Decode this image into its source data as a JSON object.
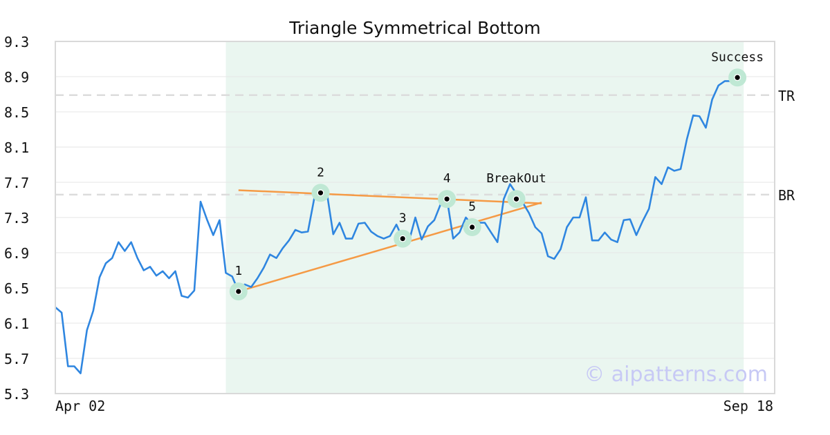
{
  "chart_data": {
    "type": "line",
    "title": "Triangle Symmetrical Bottom",
    "x_tick_labels": [
      "Apr 02",
      "Sep 18"
    ],
    "ylim": [
      5.3,
      9.3
    ],
    "y_ticks": [
      "5.3",
      "5.7",
      "6.1",
      "6.5",
      "6.9",
      "7.3",
      "7.7",
      "8.1",
      "8.5",
      "8.9",
      "9.3"
    ],
    "grid": "horizontal",
    "legend": "none",
    "series": [
      {
        "color": "#2f86e0",
        "values": [
          6.28,
          6.22,
          5.61,
          5.61,
          5.53,
          6.02,
          6.24,
          6.62,
          6.78,
          6.84,
          7.02,
          6.92,
          7.02,
          6.84,
          6.7,
          6.74,
          6.64,
          6.69,
          6.61,
          6.69,
          6.41,
          6.39,
          6.47,
          7.48,
          7.28,
          7.1,
          7.27,
          6.67,
          6.63,
          6.46,
          6.54,
          6.51,
          6.61,
          6.73,
          6.88,
          6.84,
          6.95,
          7.04,
          7.16,
          7.13,
          7.14,
          7.52,
          7.55,
          7.58,
          7.11,
          7.24,
          7.06,
          7.06,
          7.23,
          7.24,
          7.14,
          7.09,
          7.06,
          7.09,
          7.22,
          7.06,
          7.03,
          7.3,
          7.05,
          7.2,
          7.27,
          7.45,
          7.52,
          7.06,
          7.13,
          7.3,
          7.22,
          7.24,
          7.24,
          7.13,
          7.02,
          7.51,
          7.68,
          7.57,
          7.47,
          7.35,
          7.19,
          7.12,
          6.86,
          6.83,
          6.94,
          7.19,
          7.3,
          7.3,
          7.53,
          7.04,
          7.04,
          7.13,
          7.05,
          7.02,
          7.27,
          7.28,
          7.1,
          7.26,
          7.4,
          7.76,
          7.68,
          7.87,
          7.83,
          7.85,
          8.19,
          8.46,
          8.45,
          8.32,
          8.64,
          8.8,
          8.85,
          8.85
        ]
      }
    ],
    "highlight_region": {
      "start_index": 27,
      "end_index": 109,
      "color": "#eaf6f0"
    },
    "horizontal_levels": [
      {
        "label": "TR",
        "value": 8.69
      },
      {
        "label": "BR",
        "value": 7.56
      }
    ],
    "trendlines": [
      {
        "color": "#f59a45",
        "x0": 29,
        "y0": 7.61,
        "x1": 77,
        "y1": 7.46
      },
      {
        "color": "#f59a45",
        "x0": 29,
        "y0": 6.46,
        "x1": 77,
        "y1": 7.47
      }
    ],
    "markers": [
      {
        "label": "1",
        "index": 29,
        "value": 6.46,
        "label_pos": "above"
      },
      {
        "label": "2",
        "index": 42,
        "value": 7.58,
        "label_pos": "above"
      },
      {
        "label": "3",
        "index": 55,
        "value": 7.06,
        "label_pos": "above"
      },
      {
        "label": "4",
        "index": 62,
        "value": 7.51,
        "label_pos": "above"
      },
      {
        "label": "5",
        "index": 66,
        "value": 7.19,
        "label_pos": "above"
      },
      {
        "label": "BreakOut",
        "index": 73,
        "value": 7.51,
        "label_pos": "above"
      },
      {
        "label": "Success",
        "index": 108,
        "value": 8.89,
        "label_pos": "above"
      }
    ],
    "watermark": "© aipatterns.com"
  }
}
